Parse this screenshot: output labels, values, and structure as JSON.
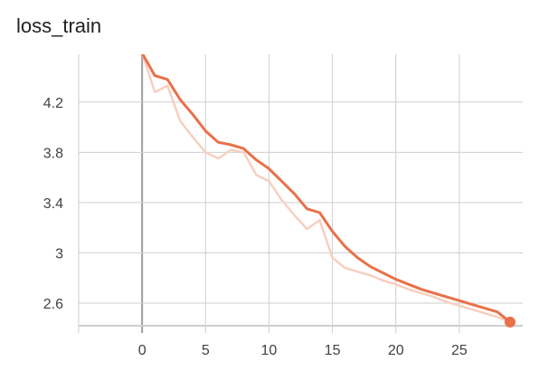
{
  "chart_data": {
    "type": "line",
    "title": "loss_train",
    "xlabel": "",
    "ylabel": "",
    "xlim": [
      -5,
      30
    ],
    "ylim": [
      2.42,
      4.58
    ],
    "xticks": [
      0,
      5,
      10,
      15,
      20,
      25
    ],
    "yticks": [
      2.6,
      3,
      3.4,
      3.8,
      4.2
    ],
    "xtick_labels": [
      "0",
      "5",
      "10",
      "15",
      "20",
      "25"
    ],
    "ytick_labels": [
      "2.6",
      "3",
      "3.4",
      "3.8",
      "4.2"
    ],
    "grid": true,
    "colors": {
      "smoothed": "#e8714a",
      "raw": "#f7cfc0",
      "grid": "#cfcfcf",
      "zero_axis": "#9e9e9e"
    },
    "series": [
      {
        "role": "smoothed",
        "x": [
          0,
          1,
          2,
          3,
          4,
          5,
          6,
          7,
          8,
          9,
          10,
          11,
          12,
          13,
          14,
          15,
          16,
          17,
          18,
          19,
          20,
          21,
          22,
          23,
          24,
          25,
          26,
          27,
          28,
          29
        ],
        "y": [
          4.59,
          4.41,
          4.38,
          4.22,
          4.1,
          3.97,
          3.88,
          3.86,
          3.83,
          3.74,
          3.67,
          3.57,
          3.47,
          3.35,
          3.32,
          3.17,
          3.05,
          2.96,
          2.89,
          2.84,
          2.79,
          2.75,
          2.71,
          2.68,
          2.65,
          2.62,
          2.59,
          2.56,
          2.53,
          2.45
        ]
      },
      {
        "role": "raw",
        "x": [
          0,
          1,
          2,
          3,
          4,
          5,
          6,
          7,
          8,
          9,
          10,
          11,
          12,
          13,
          14,
          15,
          16,
          17,
          18,
          19,
          20,
          21,
          22,
          23,
          24,
          25,
          26,
          27,
          28,
          29
        ],
        "y": [
          4.59,
          4.28,
          4.33,
          4.05,
          3.92,
          3.8,
          3.75,
          3.82,
          3.8,
          3.62,
          3.57,
          3.42,
          3.3,
          3.19,
          3.26,
          2.96,
          2.88,
          2.85,
          2.82,
          2.78,
          2.75,
          2.71,
          2.68,
          2.65,
          2.61,
          2.58,
          2.55,
          2.52,
          2.49,
          2.45
        ]
      }
    ]
  }
}
